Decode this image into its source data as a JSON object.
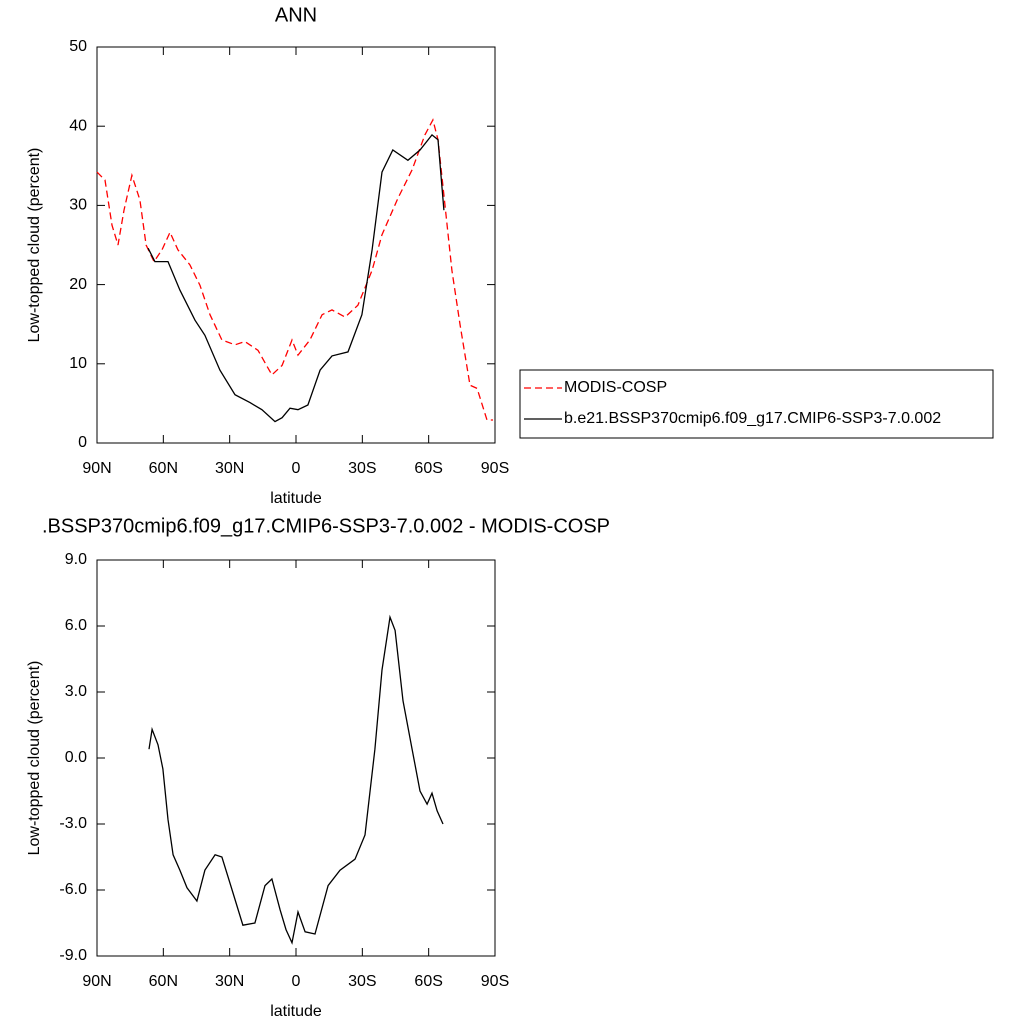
{
  "chart_data": [
    {
      "type": "line",
      "title": "ANN",
      "x_label": "latitude",
      "y_label": "Low-topped cloud (percent)",
      "xlim": [
        90,
        -90
      ],
      "ylim": [
        0,
        50
      ],
      "xticks": [
        {
          "value": 90,
          "label": "90N"
        },
        {
          "value": 60,
          "label": "60N"
        },
        {
          "value": 30,
          "label": "30N"
        },
        0,
        {
          "value": -30,
          "label": "30S"
        },
        {
          "value": -60,
          "label": "60S"
        },
        {
          "value": -90,
          "label": "90S"
        }
      ],
      "yticks": [
        0,
        10,
        20,
        30,
        40,
        50
      ],
      "legend": "right",
      "series": [
        {
          "name": "MODIS-COSP",
          "color": "#ff0000",
          "dash": true,
          "x": [
            90,
            86.4,
            83.2,
            80.5,
            77.8,
            74.2,
            70.6,
            67.8,
            64.2,
            60.6,
            57,
            53.4,
            48,
            43.4,
            38.9,
            33.5,
            27.6,
            23.1,
            17.2,
            10.9,
            6.3,
            1.8,
            -0.9,
            -6.3,
            -11.8,
            -16.3,
            -22.2,
            -28,
            -34.4,
            -38.9,
            -46.1,
            -52.5,
            -58.3,
            -61.9,
            -64.2,
            -67.4,
            -70.5,
            -74.2,
            -78.7,
            -81.9,
            -86.4,
            -89.1
          ],
          "values": [
            34.2,
            33.2,
            27.5,
            25,
            29.4,
            33.8,
            30.7,
            25,
            22.9,
            24.4,
            26.6,
            24.4,
            22.5,
            19.9,
            16.2,
            13,
            12.4,
            12.8,
            11.7,
            8.6,
            9.8,
            13,
            11.1,
            13,
            16.2,
            16.8,
            15.9,
            17.4,
            21.8,
            26.3,
            30.9,
            34.5,
            38.9,
            40.8,
            38.3,
            30,
            21.8,
            14.9,
            7.3,
            6.9,
            2.9,
            2.9
          ]
        },
        {
          "name": "b.e21.BSSP370cmip6.f09_g17.CMIP6-SSP3-7.0.002",
          "color": "#000000",
          "dash": false,
          "x": [
            66.9,
            63.8,
            57.9,
            52.5,
            45.7,
            41.2,
            34.4,
            27.6,
            20.8,
            15.4,
            9.5,
            6.3,
            2.7,
            -0.9,
            -5.4,
            -10.9,
            -16.3,
            -23.5,
            -29.8,
            -34.4,
            -38.9,
            -43.8,
            -50.6,
            -56.1,
            -61.5,
            -64.2,
            -66.9
          ],
          "values": [
            24.6,
            22.9,
            22.9,
            19.3,
            15.5,
            13.6,
            9.2,
            6.1,
            5.1,
            4.2,
            2.7,
            3.2,
            4.4,
            4.2,
            4.8,
            9.2,
            11,
            11.5,
            16.2,
            24.4,
            34.2,
            37,
            35.7,
            37,
            38.9,
            38.3,
            29.4
          ]
        }
      ]
    },
    {
      "type": "line",
      "title": ".BSSP370cmip6.f09_g17.CMIP6-SSP3-7.0.002 - MODIS-COSP",
      "x_label": "latitude",
      "y_label": "Low-topped cloud (percent)",
      "xlim": [
        90,
        -90
      ],
      "ylim": [
        -9,
        9
      ],
      "xticks": [
        {
          "value": 90,
          "label": "90N"
        },
        {
          "value": 60,
          "label": "60N"
        },
        {
          "value": 30,
          "label": "30N"
        },
        0,
        {
          "value": -30,
          "label": "30S"
        },
        {
          "value": -60,
          "label": "60S"
        },
        {
          "value": -90,
          "label": "90S"
        }
      ],
      "yticks": [
        {
          "value": -9,
          "label": "-9.0"
        },
        {
          "value": -6,
          "label": "-6.0"
        },
        {
          "value": -3,
          "label": "-3.0"
        },
        {
          "value": 0,
          "label": "0.0"
        },
        {
          "value": 3,
          "label": "3.0"
        },
        {
          "value": 6,
          "label": "6.0"
        },
        {
          "value": 9,
          "label": "9.0"
        }
      ],
      "series": [
        {
          "color": "#000000",
          "dash": false,
          "x": [
            66.5,
            65.1,
            62.4,
            60.2,
            57.9,
            55.6,
            52.5,
            49.3,
            44.8,
            41.2,
            36.6,
            33.5,
            28.9,
            24,
            18.6,
            14,
            10.9,
            7.2,
            4.5,
            1.8,
            -0.9,
            -4.1,
            -8.6,
            -14.5,
            -19.9,
            -26.7,
            -31.2,
            -35.7,
            -38.9,
            -42.5,
            -44.8,
            -48.4,
            -52.5,
            -56.1,
            -59.3,
            -61.5,
            -63.8,
            -66.5
          ],
          "values": [
            0.4,
            1.3,
            0.6,
            -0.5,
            -2.8,
            -4.4,
            -5.1,
            -5.9,
            -6.5,
            -5.1,
            -4.4,
            -4.5,
            -6,
            -7.6,
            -7.5,
            -5.8,
            -5.5,
            -6.9,
            -7.8,
            -8.4,
            -7,
            -7.9,
            -8,
            -5.8,
            -5.1,
            -4.6,
            -3.5,
            0.4,
            4,
            6.4,
            5.8,
            2.6,
            0.4,
            -1.5,
            -2.1,
            -1.6,
            -2.4,
            -3
          ]
        }
      ]
    }
  ]
}
